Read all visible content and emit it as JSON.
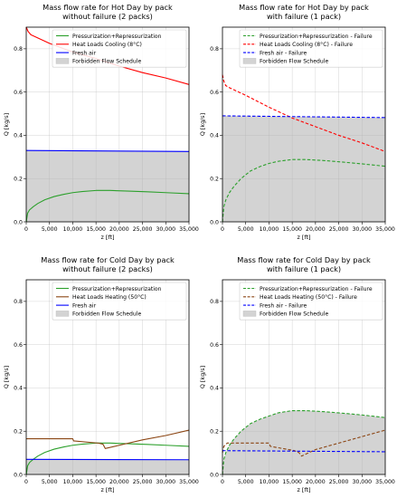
{
  "chart_data": [
    {
      "type": "area",
      "title_lines": [
        "Mass flow rate for Hot Day by pack",
        "without failure (2 packs)"
      ],
      "xlabel": "z [ft]",
      "ylabel": "Q [kg/s]",
      "xlim": [
        0,
        35000
      ],
      "ylim": [
        0,
        0.9
      ],
      "xticks": [
        0,
        5000,
        10000,
        15000,
        20000,
        25000,
        30000,
        35000
      ],
      "xtick_labels": [
        "0",
        "5,000",
        "10,000",
        "15,000",
        "20,000",
        "25,000",
        "30,000",
        "35,000"
      ],
      "yticks": [
        0.0,
        0.2,
        0.4,
        0.6,
        0.8
      ],
      "ytick_labels": [
        "0.0",
        "0.2",
        "0.4",
        "0.6",
        "0.8"
      ],
      "grid": true,
      "legend_position": "top-right",
      "shade": {
        "label": "Forbidden Flow Schedule",
        "color": "#d3d3d3",
        "between": [
          "zero",
          "Fresh air"
        ]
      },
      "series": [
        {
          "name": "Pressurization+Repressurization",
          "color": "#2ca02c",
          "style": "solid",
          "x": [
            0,
            300,
            700,
            1500,
            2500,
            4000,
            6000,
            8000,
            10000,
            12000,
            15000,
            18000,
            22000,
            26000,
            30000,
            35000
          ],
          "y": [
            0.0,
            0.04,
            0.055,
            0.07,
            0.085,
            0.102,
            0.117,
            0.127,
            0.135,
            0.14,
            0.145,
            0.145,
            0.142,
            0.139,
            0.135,
            0.13
          ]
        },
        {
          "name": "Heat Loads Cooling (8°C)",
          "color": "#ff0000",
          "style": "solid",
          "x": [
            0,
            400,
            1000,
            5000,
            10000,
            15000,
            20000,
            25000,
            30000,
            35000
          ],
          "y": [
            0.9,
            0.88,
            0.865,
            0.825,
            0.785,
            0.755,
            0.72,
            0.69,
            0.665,
            0.635
          ]
        },
        {
          "name": "Fresh air",
          "color": "#0000ff",
          "style": "solid",
          "x": [
            0,
            35000
          ],
          "y": [
            0.33,
            0.325
          ]
        }
      ]
    },
    {
      "type": "area",
      "title_lines": [
        "Mass flow rate for Hot Day by pack",
        "with failure (1 pack)"
      ],
      "xlabel": "z [ft]",
      "ylabel": "Q [kg/s]",
      "xlim": [
        0,
        35000
      ],
      "ylim": [
        0,
        0.9
      ],
      "xticks": [
        0,
        5000,
        10000,
        15000,
        20000,
        25000,
        30000,
        35000
      ],
      "xtick_labels": [
        "0",
        "5,000",
        "10,000",
        "15,000",
        "20,000",
        "25,000",
        "30,000",
        "35,000"
      ],
      "yticks": [
        0.0,
        0.2,
        0.4,
        0.6,
        0.8
      ],
      "ytick_labels": [
        "0.0",
        "0.2",
        "0.4",
        "0.6",
        "0.8"
      ],
      "grid": true,
      "legend_position": "top-right",
      "shade": {
        "label": "Forbidden Flow Schedule",
        "color": "#d3d3d3",
        "between": [
          "zero",
          "Fresh air - Failure"
        ]
      },
      "series": [
        {
          "name": "Pressurization+Repressurization - Failure",
          "color": "#2ca02c",
          "style": "dashed",
          "x": [
            0,
            300,
            700,
            1500,
            2500,
            4000,
            6000,
            8000,
            10000,
            12000,
            15000,
            18000,
            22000,
            26000,
            30000,
            35000
          ],
          "y": [
            0.0,
            0.07,
            0.1,
            0.135,
            0.165,
            0.2,
            0.235,
            0.255,
            0.27,
            0.28,
            0.288,
            0.288,
            0.283,
            0.276,
            0.268,
            0.257
          ]
        },
        {
          "name": "Heat Loads Cooling (8°C) - Failure",
          "color": "#ff0000",
          "style": "dashed",
          "x": [
            0,
            300,
            700,
            1500,
            5000,
            10000,
            15000,
            20000,
            25000,
            30000,
            35000
          ],
          "y": [
            0.68,
            0.65,
            0.63,
            0.62,
            0.585,
            0.53,
            0.48,
            0.44,
            0.4,
            0.365,
            0.325
          ]
        },
        {
          "name": "Fresh air - Failure",
          "color": "#0000ff",
          "style": "dashed",
          "x": [
            0,
            35000
          ],
          "y": [
            0.49,
            0.482
          ]
        }
      ]
    },
    {
      "type": "area",
      "title_lines": [
        "Mass flow rate for Cold Day by pack",
        "without failure (2 packs)"
      ],
      "xlabel": "z [ft]",
      "ylabel": "Q [kg/s]",
      "xlim": [
        0,
        35000
      ],
      "ylim": [
        0,
        0.9
      ],
      "xticks": [
        0,
        5000,
        10000,
        15000,
        20000,
        25000,
        30000,
        35000
      ],
      "xtick_labels": [
        "0",
        "5,000",
        "10,000",
        "15,000",
        "20,000",
        "25,000",
        "30,000",
        "35,000"
      ],
      "yticks": [
        0.0,
        0.2,
        0.4,
        0.6,
        0.8
      ],
      "ytick_labels": [
        "0.0",
        "0.2",
        "0.4",
        "0.6",
        "0.8"
      ],
      "grid": true,
      "legend_position": "top-right",
      "shade": {
        "label": "Forbidden Flow Schedule",
        "color": "#d3d3d3",
        "between": [
          "zero",
          "Fresh air"
        ]
      },
      "series": [
        {
          "name": "Pressurization+Repressurization",
          "color": "#2ca02c",
          "style": "solid",
          "x": [
            0,
            300,
            700,
            1500,
            2500,
            4000,
            6000,
            8000,
            10000,
            12000,
            15000,
            18000,
            22000,
            26000,
            30000,
            35000
          ],
          "y": [
            0.0,
            0.04,
            0.055,
            0.07,
            0.085,
            0.102,
            0.117,
            0.127,
            0.135,
            0.14,
            0.145,
            0.145,
            0.142,
            0.139,
            0.135,
            0.13
          ]
        },
        {
          "name": "Heat Loads Heating (50°C)",
          "color": "#8b4513",
          "style": "solid",
          "x": [
            0,
            10000,
            10200,
            15500,
            16500,
            17000,
            20000,
            25000,
            30000,
            35000
          ],
          "y": [
            0.165,
            0.165,
            0.155,
            0.145,
            0.14,
            0.12,
            0.135,
            0.16,
            0.18,
            0.205
          ]
        },
        {
          "name": "Fresh air",
          "color": "#0000ff",
          "style": "solid",
          "x": [
            0,
            35000
          ],
          "y": [
            0.07,
            0.068
          ]
        }
      ]
    },
    {
      "type": "area",
      "title_lines": [
        "Mass flow rate for Cold Day by pack",
        "with failure (1 pack)"
      ],
      "xlabel": "z [ft]",
      "ylabel": "Q [kg/s]",
      "xlim": [
        0,
        35000
      ],
      "ylim": [
        0,
        0.9
      ],
      "xticks": [
        0,
        5000,
        10000,
        15000,
        20000,
        25000,
        30000,
        35000
      ],
      "xtick_labels": [
        "0",
        "5,000",
        "10,000",
        "15,000",
        "20,000",
        "25,000",
        "30,000",
        "35,000"
      ],
      "yticks": [
        0.0,
        0.2,
        0.4,
        0.6,
        0.8
      ],
      "ytick_labels": [
        "0.0",
        "0.2",
        "0.4",
        "0.6",
        "0.8"
      ],
      "grid": true,
      "legend_position": "top-right",
      "shade": {
        "label": "Forbidden Flow Schedule",
        "color": "#d3d3d3",
        "between": [
          "zero",
          "Pressurization+Repressurization - Failure"
        ]
      },
      "series": [
        {
          "name": "Pressurization+Repressurization - Failure",
          "color": "#2ca02c",
          "style": "dashed",
          "x": [
            0,
            300,
            700,
            1500,
            2500,
            4000,
            6000,
            8000,
            10000,
            12000,
            15000,
            18000,
            22000,
            26000,
            30000,
            35000
          ],
          "y": [
            0.0,
            0.07,
            0.1,
            0.135,
            0.165,
            0.2,
            0.235,
            0.255,
            0.27,
            0.285,
            0.295,
            0.295,
            0.29,
            0.283,
            0.275,
            0.263
          ]
        },
        {
          "name": "Heat Loads Heating (50°C) - Failure",
          "color": "#8b4513",
          "style": "dashed",
          "x": [
            0,
            300,
            1000,
            10000,
            10300,
            15500,
            16500,
            17000,
            20000,
            25000,
            30000,
            35000
          ],
          "y": [
            0.1,
            0.13,
            0.145,
            0.145,
            0.13,
            0.11,
            0.1,
            0.085,
            0.115,
            0.145,
            0.175,
            0.205
          ]
        },
        {
          "name": "Fresh air - Failure",
          "color": "#0000ff",
          "style": "dashed",
          "x": [
            0,
            35000
          ],
          "y": [
            0.11,
            0.105
          ]
        }
      ]
    }
  ]
}
